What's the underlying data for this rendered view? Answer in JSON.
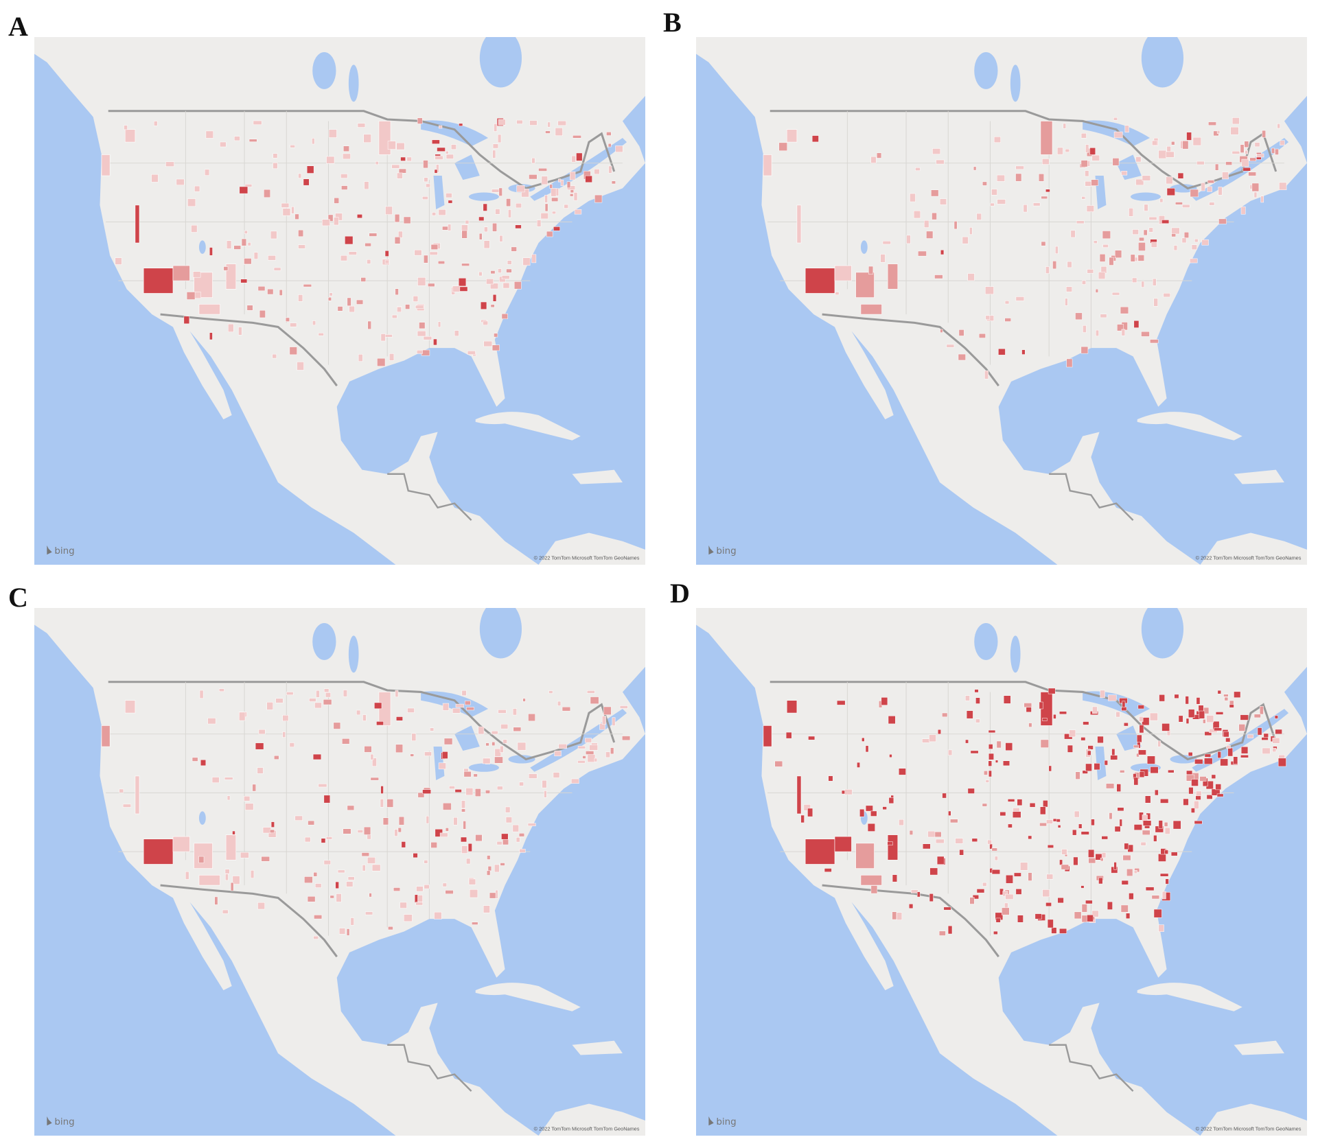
{
  "panels": [
    {
      "label": "A",
      "logo": "bing",
      "attribution": "© 2022 TomTom Microsoft TomTom GeoNames"
    },
    {
      "label": "B",
      "logo": "bing",
      "attribution": "© 2022 TomTom Microsoft TomTom GeoNames"
    },
    {
      "label": "C",
      "logo": "bing",
      "attribution": "© 2022 TomTom Microsoft TomTom GeoNames"
    },
    {
      "label": "D",
      "logo": "bing",
      "attribution": "© 2022 TomTom Microsoft TomTom GeoNames"
    }
  ]
}
